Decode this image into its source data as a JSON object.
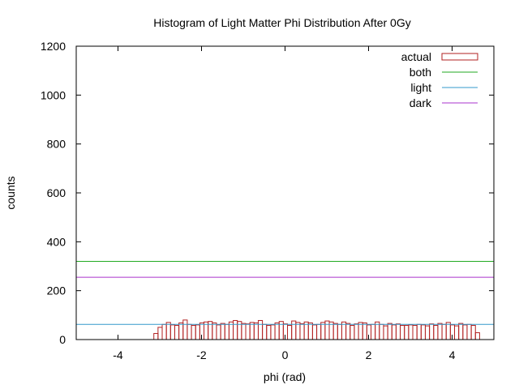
{
  "chart_data": {
    "type": "bar",
    "title": "Histogram of Light Matter Phi Distribution After 0Gy",
    "xlabel": "phi (rad)",
    "ylabel": "counts",
    "xlim": [
      -5,
      5
    ],
    "ylim": [
      0,
      1200
    ],
    "xticks": [
      "-4",
      "-2",
      "0",
      "2",
      "4"
    ],
    "xtick_values": [
      -4,
      -2,
      0,
      2,
      4
    ],
    "yticks": [
      "0",
      "200",
      "400",
      "600",
      "800",
      "1000",
      "1200"
    ],
    "ytick_values": [
      0,
      200,
      400,
      600,
      800,
      1000,
      1200
    ],
    "grid": false,
    "legend_position": "top-right",
    "histogram": {
      "name": "actual",
      "color": "#b22222",
      "bin_start": -3.1416,
      "bin_width": 0.1,
      "values": [
        25,
        50,
        62,
        70,
        60,
        58,
        68,
        80,
        62,
        58,
        60,
        68,
        72,
        74,
        68,
        60,
        66,
        62,
        72,
        78,
        74,
        66,
        64,
        70,
        68,
        78,
        62,
        58,
        60,
        68,
        74,
        64,
        58,
        76,
        70,
        65,
        72,
        68,
        60,
        62,
        70,
        76,
        72,
        66,
        62,
        72,
        66,
        58,
        64,
        70,
        68,
        60,
        62,
        72,
        62,
        56,
        66,
        60,
        64,
        58,
        58,
        60,
        58,
        62,
        60,
        56,
        64,
        58,
        66,
        62,
        70,
        60,
        56,
        66,
        60,
        62,
        58,
        28
      ]
    },
    "series": [
      {
        "name": "both",
        "type": "hline",
        "value": 320,
        "color": "#22aa22"
      },
      {
        "name": "light",
        "type": "hline",
        "value": 62,
        "color": "#3399cc"
      },
      {
        "name": "dark",
        "type": "hline",
        "value": 255,
        "color": "#aa33cc"
      }
    ],
    "legend": [
      {
        "label": "actual",
        "kind": "box",
        "color": "#b22222"
      },
      {
        "label": "both",
        "kind": "line",
        "color": "#22aa22"
      },
      {
        "label": "light",
        "kind": "line",
        "color": "#3399cc"
      },
      {
        "label": "dark",
        "kind": "line",
        "color": "#aa33cc"
      }
    ]
  }
}
